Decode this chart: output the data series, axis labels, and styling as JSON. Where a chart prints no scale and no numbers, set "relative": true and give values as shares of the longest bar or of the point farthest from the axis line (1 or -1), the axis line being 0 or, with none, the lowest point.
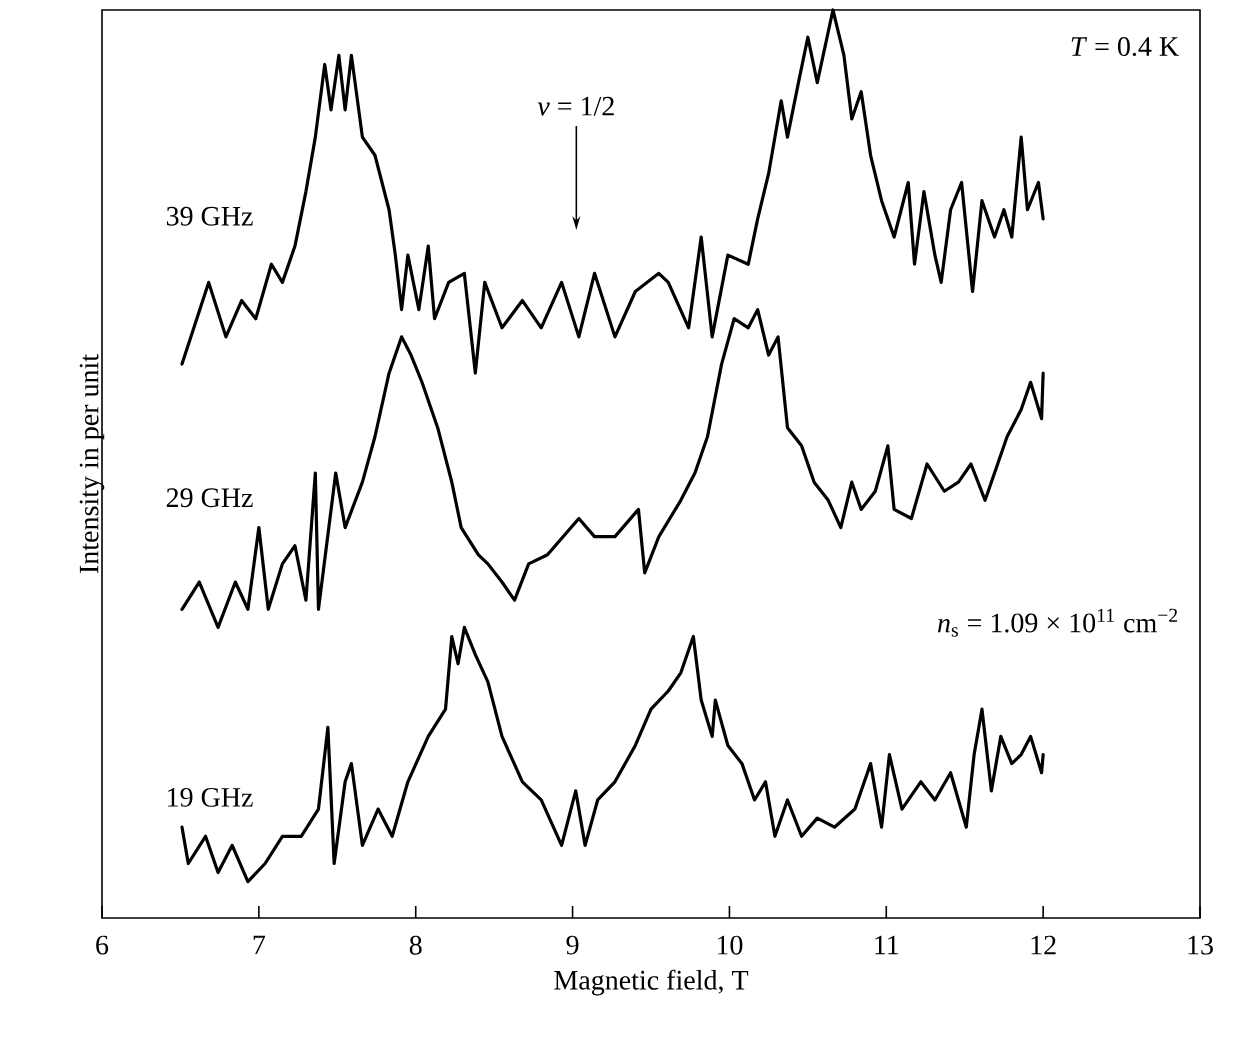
{
  "chart_data": {
    "type": "line",
    "relative": true,
    "xlabel": "Magnetic field, T",
    "ylabel": "Intensity in per unit",
    "xlim": [
      6,
      13
    ],
    "xticks": [
      6,
      7,
      8,
      9,
      10,
      11,
      12,
      13
    ],
    "annotations": [
      "*v* = 1/2",
      "*T* = 0.4 K",
      "*n*$_{s}$ = 1.09 × 10$^{11}$ cm$^{−2}$"
    ],
    "series": [
      {
        "name": "39 GHz",
        "color": "#000000",
        "x": [
          6.51,
          6.68,
          6.79,
          6.89,
          6.98,
          7.08,
          7.15,
          7.23,
          7.3,
          7.36,
          7.42,
          7.46,
          7.51,
          7.55,
          7.59,
          7.66,
          7.74,
          7.83,
          7.87,
          7.91,
          7.95,
          8.02,
          8.08,
          8.12,
          8.21,
          8.31,
          8.38,
          8.44,
          8.55,
          8.68,
          8.8,
          8.93,
          9.04,
          9.14,
          9.27,
          9.4,
          9.55,
          9.61,
          9.74,
          9.82,
          9.89,
          9.99,
          10.12,
          10.18,
          10.25,
          10.33,
          10.37,
          10.44,
          10.5,
          10.56,
          10.66,
          10.73,
          10.78,
          10.84,
          10.9,
          10.97,
          11.05,
          11.14,
          11.18,
          11.24,
          11.31,
          11.35,
          11.41,
          11.48,
          11.55,
          11.61,
          11.69,
          11.75,
          11.8,
          11.86,
          11.9,
          11.97,
          12.0
        ],
        "values": [
          0.61,
          0.7,
          0.64,
          0.68,
          0.66,
          0.72,
          0.7,
          0.74,
          0.8,
          0.86,
          0.94,
          0.89,
          0.95,
          0.89,
          0.95,
          0.86,
          0.84,
          0.78,
          0.73,
          0.67,
          0.73,
          0.67,
          0.74,
          0.66,
          0.7,
          0.71,
          0.6,
          0.7,
          0.65,
          0.68,
          0.65,
          0.7,
          0.64,
          0.71,
          0.64,
          0.69,
          0.71,
          0.7,
          0.65,
          0.75,
          0.64,
          0.73,
          0.72,
          0.77,
          0.82,
          0.9,
          0.86,
          0.92,
          0.97,
          0.92,
          1.0,
          0.95,
          0.88,
          0.91,
          0.84,
          0.79,
          0.75,
          0.81,
          0.72,
          0.8,
          0.73,
          0.7,
          0.78,
          0.81,
          0.69,
          0.79,
          0.75,
          0.78,
          0.75,
          0.86,
          0.78,
          0.81,
          0.77
        ]
      },
      {
        "name": "29 GHz",
        "color": "#000000",
        "x": [
          6.51,
          6.62,
          6.74,
          6.85,
          6.93,
          7.0,
          7.06,
          7.15,
          7.23,
          7.3,
          7.36,
          7.38,
          7.49,
          7.55,
          7.66,
          7.74,
          7.83,
          7.91,
          7.97,
          8.04,
          8.14,
          8.23,
          8.29,
          8.4,
          8.46,
          8.55,
          8.63,
          8.72,
          8.84,
          9.04,
          9.14,
          9.27,
          9.42,
          9.46,
          9.55,
          9.69,
          9.78,
          9.86,
          9.95,
          10.03,
          10.12,
          10.18,
          10.25,
          10.31,
          10.37,
          10.46,
          10.54,
          10.63,
          10.71,
          10.78,
          10.84,
          10.93,
          11.01,
          11.05,
          11.16,
          11.26,
          11.37,
          11.46,
          11.54,
          11.63,
          11.71,
          11.77,
          11.86,
          11.92,
          11.99,
          12.0
        ],
        "values": [
          0.34,
          0.37,
          0.32,
          0.37,
          0.34,
          0.43,
          0.34,
          0.39,
          0.41,
          0.35,
          0.49,
          0.34,
          0.49,
          0.43,
          0.48,
          0.53,
          0.6,
          0.64,
          0.62,
          0.59,
          0.54,
          0.48,
          0.43,
          0.4,
          0.39,
          0.37,
          0.35,
          0.39,
          0.4,
          0.44,
          0.42,
          0.42,
          0.45,
          0.38,
          0.42,
          0.46,
          0.49,
          0.53,
          0.61,
          0.66,
          0.65,
          0.67,
          0.62,
          0.64,
          0.54,
          0.52,
          0.48,
          0.46,
          0.43,
          0.48,
          0.45,
          0.47,
          0.52,
          0.45,
          0.44,
          0.5,
          0.47,
          0.48,
          0.5,
          0.46,
          0.5,
          0.53,
          0.56,
          0.59,
          0.55,
          0.6
        ]
      },
      {
        "name": "19 GHz",
        "color": "#000000",
        "x": [
          6.51,
          6.55,
          6.66,
          6.74,
          6.83,
          6.93,
          7.04,
          7.15,
          7.27,
          7.38,
          7.44,
          7.48,
          7.55,
          7.59,
          7.66,
          7.76,
          7.85,
          7.95,
          8.08,
          8.19,
          8.23,
          8.27,
          8.31,
          8.38,
          8.46,
          8.55,
          8.68,
          8.8,
          8.93,
          9.02,
          9.08,
          9.16,
          9.27,
          9.4,
          9.5,
          9.61,
          9.69,
          9.77,
          9.82,
          9.89,
          9.91,
          9.99,
          10.08,
          10.16,
          10.23,
          10.29,
          10.37,
          10.46,
          10.56,
          10.67,
          10.8,
          10.9,
          10.97,
          11.02,
          11.1,
          11.22,
          11.31,
          11.41,
          11.51,
          11.56,
          11.61,
          11.67,
          11.73,
          11.8,
          11.86,
          11.92,
          11.99,
          12.0
        ],
        "values": [
          0.1,
          0.06,
          0.09,
          0.05,
          0.08,
          0.04,
          0.06,
          0.09,
          0.09,
          0.12,
          0.21,
          0.06,
          0.15,
          0.17,
          0.08,
          0.12,
          0.09,
          0.15,
          0.2,
          0.23,
          0.31,
          0.28,
          0.32,
          0.29,
          0.26,
          0.2,
          0.15,
          0.13,
          0.08,
          0.14,
          0.08,
          0.13,
          0.15,
          0.19,
          0.23,
          0.25,
          0.27,
          0.31,
          0.24,
          0.2,
          0.24,
          0.19,
          0.17,
          0.13,
          0.15,
          0.09,
          0.13,
          0.09,
          0.11,
          0.1,
          0.12,
          0.17,
          0.1,
          0.18,
          0.12,
          0.15,
          0.13,
          0.16,
          0.1,
          0.18,
          0.23,
          0.14,
          0.2,
          0.17,
          0.18,
          0.2,
          0.16,
          0.18
        ]
      }
    ]
  }
}
